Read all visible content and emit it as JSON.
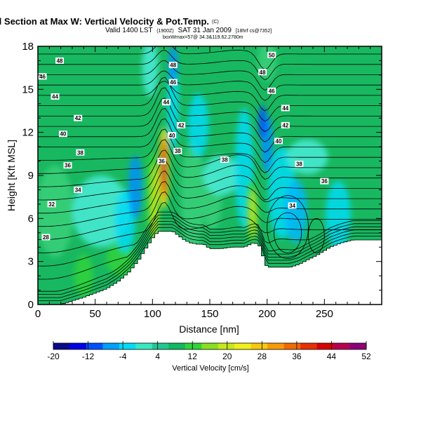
{
  "chart_data": {
    "type": "heatmap",
    "title": "Wind-Parallel Section at Max W: Vertical Velocity & Pot.Temp.",
    "title_mark": "(C)",
    "subtitle": "Valid 1400 LST",
    "subtitle_small_1": "(1900Z)",
    "subtitle_mid": "SAT 31 Jan 2009",
    "subtitle_small_2": "[18hrf cs@7352]",
    "subtitle_line3": "boxWmax=57@ 34.3&119.62.2780m",
    "xlabel": "Distance [nm]",
    "ylabel": "Height [Kft MSL]",
    "xlim": [
      0,
      300
    ],
    "ylim": [
      0,
      18
    ],
    "x_ticks": [
      0,
      50,
      100,
      150,
      200,
      250
    ],
    "y_ticks": [
      0,
      3,
      6,
      9,
      12,
      15,
      18
    ],
    "colorbar": {
      "label": "Vertical Velocity [cm/s]",
      "range": [
        -20,
        52
      ],
      "tick_labels": [
        "-20",
        "-12",
        "-4",
        "4",
        "12",
        "20",
        "28",
        "36",
        "44",
        "52"
      ],
      "colors": [
        "#0a0a8c",
        "#0000e6",
        "#0050ff",
        "#00a0ff",
        "#00dcf5",
        "#38e8c0",
        "#20c890",
        "#10b860",
        "#2ed43a",
        "#88e020",
        "#c8e81a",
        "#f0f01a",
        "#f8c80a",
        "#f89a06",
        "#f06a00",
        "#e83000",
        "#d80000",
        "#b80050",
        "#8c0078"
      ]
    },
    "contour_labels": [
      {
        "text": "48",
        "x": 19,
        "y": 17.0
      },
      {
        "text": "46",
        "x": 4,
        "y": 15.9
      },
      {
        "text": "44",
        "x": 15,
        "y": 14.5
      },
      {
        "text": "42",
        "x": 35,
        "y": 13.0
      },
      {
        "text": "40",
        "x": 22,
        "y": 11.9
      },
      {
        "text": "38",
        "x": 37,
        "y": 10.6
      },
      {
        "text": "36",
        "x": 26,
        "y": 9.7
      },
      {
        "text": "34",
        "x": 35,
        "y": 8.0
      },
      {
        "text": "32",
        "x": 12,
        "y": 7.0
      },
      {
        "text": "28",
        "x": 7,
        "y": 4.7
      },
      {
        "text": "48",
        "x": 118,
        "y": 16.7
      },
      {
        "text": "46",
        "x": 118,
        "y": 15.5
      },
      {
        "text": "44",
        "x": 112,
        "y": 14.1
      },
      {
        "text": "42",
        "x": 125,
        "y": 12.5
      },
      {
        "text": "40",
        "x": 117,
        "y": 11.8
      },
      {
        "text": "38",
        "x": 122,
        "y": 10.7
      },
      {
        "text": "36",
        "x": 108,
        "y": 10.0
      },
      {
        "text": "38",
        "x": 163,
        "y": 10.1
      },
      {
        "text": "50",
        "x": 204,
        "y": 17.4
      },
      {
        "text": "48",
        "x": 196,
        "y": 16.2
      },
      {
        "text": "46",
        "x": 204,
        "y": 14.9
      },
      {
        "text": "44",
        "x": 216,
        "y": 13.7
      },
      {
        "text": "42",
        "x": 216,
        "y": 12.5
      },
      {
        "text": "40",
        "x": 210,
        "y": 11.4
      },
      {
        "text": "38",
        "x": 228,
        "y": 9.8
      },
      {
        "text": "36",
        "x": 250,
        "y": 8.6
      },
      {
        "text": "34",
        "x": 222,
        "y": 6.9
      }
    ]
  }
}
